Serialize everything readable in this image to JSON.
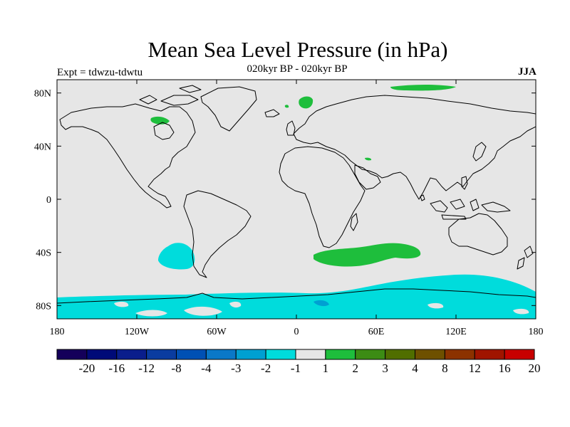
{
  "title": "Mean Sea Level Pressure (in hPa)",
  "subtitle": "020kyr BP - 020kyr BP",
  "experiment": "Expt = tdwzu-tdwtu",
  "season": "JJA",
  "map": {
    "lon_labels": [
      "180",
      "120W",
      "60W",
      "0",
      "60E",
      "120E",
      "180"
    ],
    "lon_values": [
      -180,
      -120,
      -60,
      0,
      60,
      120,
      180
    ],
    "lat_labels": [
      "80N",
      "40N",
      "0",
      "40S",
      "80S"
    ],
    "lat_values": [
      80,
      40,
      0,
      -40,
      -80
    ],
    "lon_range": [
      -180,
      180
    ],
    "lat_range": [
      -90,
      90
    ],
    "background_color": "#e6e6e6",
    "coastline_color": "#000000"
  },
  "colorbar": {
    "labels": [
      "-20",
      "-16",
      "-12",
      "-8",
      "-4",
      "-3",
      "-2",
      "-1",
      "1",
      "2",
      "3",
      "4",
      "8",
      "12",
      "16",
      "20"
    ],
    "colors": [
      "#14005a",
      "#000a78",
      "#0a1e8c",
      "#0a3ca0",
      "#0050b4",
      "#0a78c8",
      "#00a0d2",
      "#00dcdc",
      "#e6e6e6",
      "#1ebe3c",
      "#3c8c14",
      "#506e00",
      "#6e5000",
      "#8c3200",
      "#a01400",
      "#c80000"
    ]
  }
}
